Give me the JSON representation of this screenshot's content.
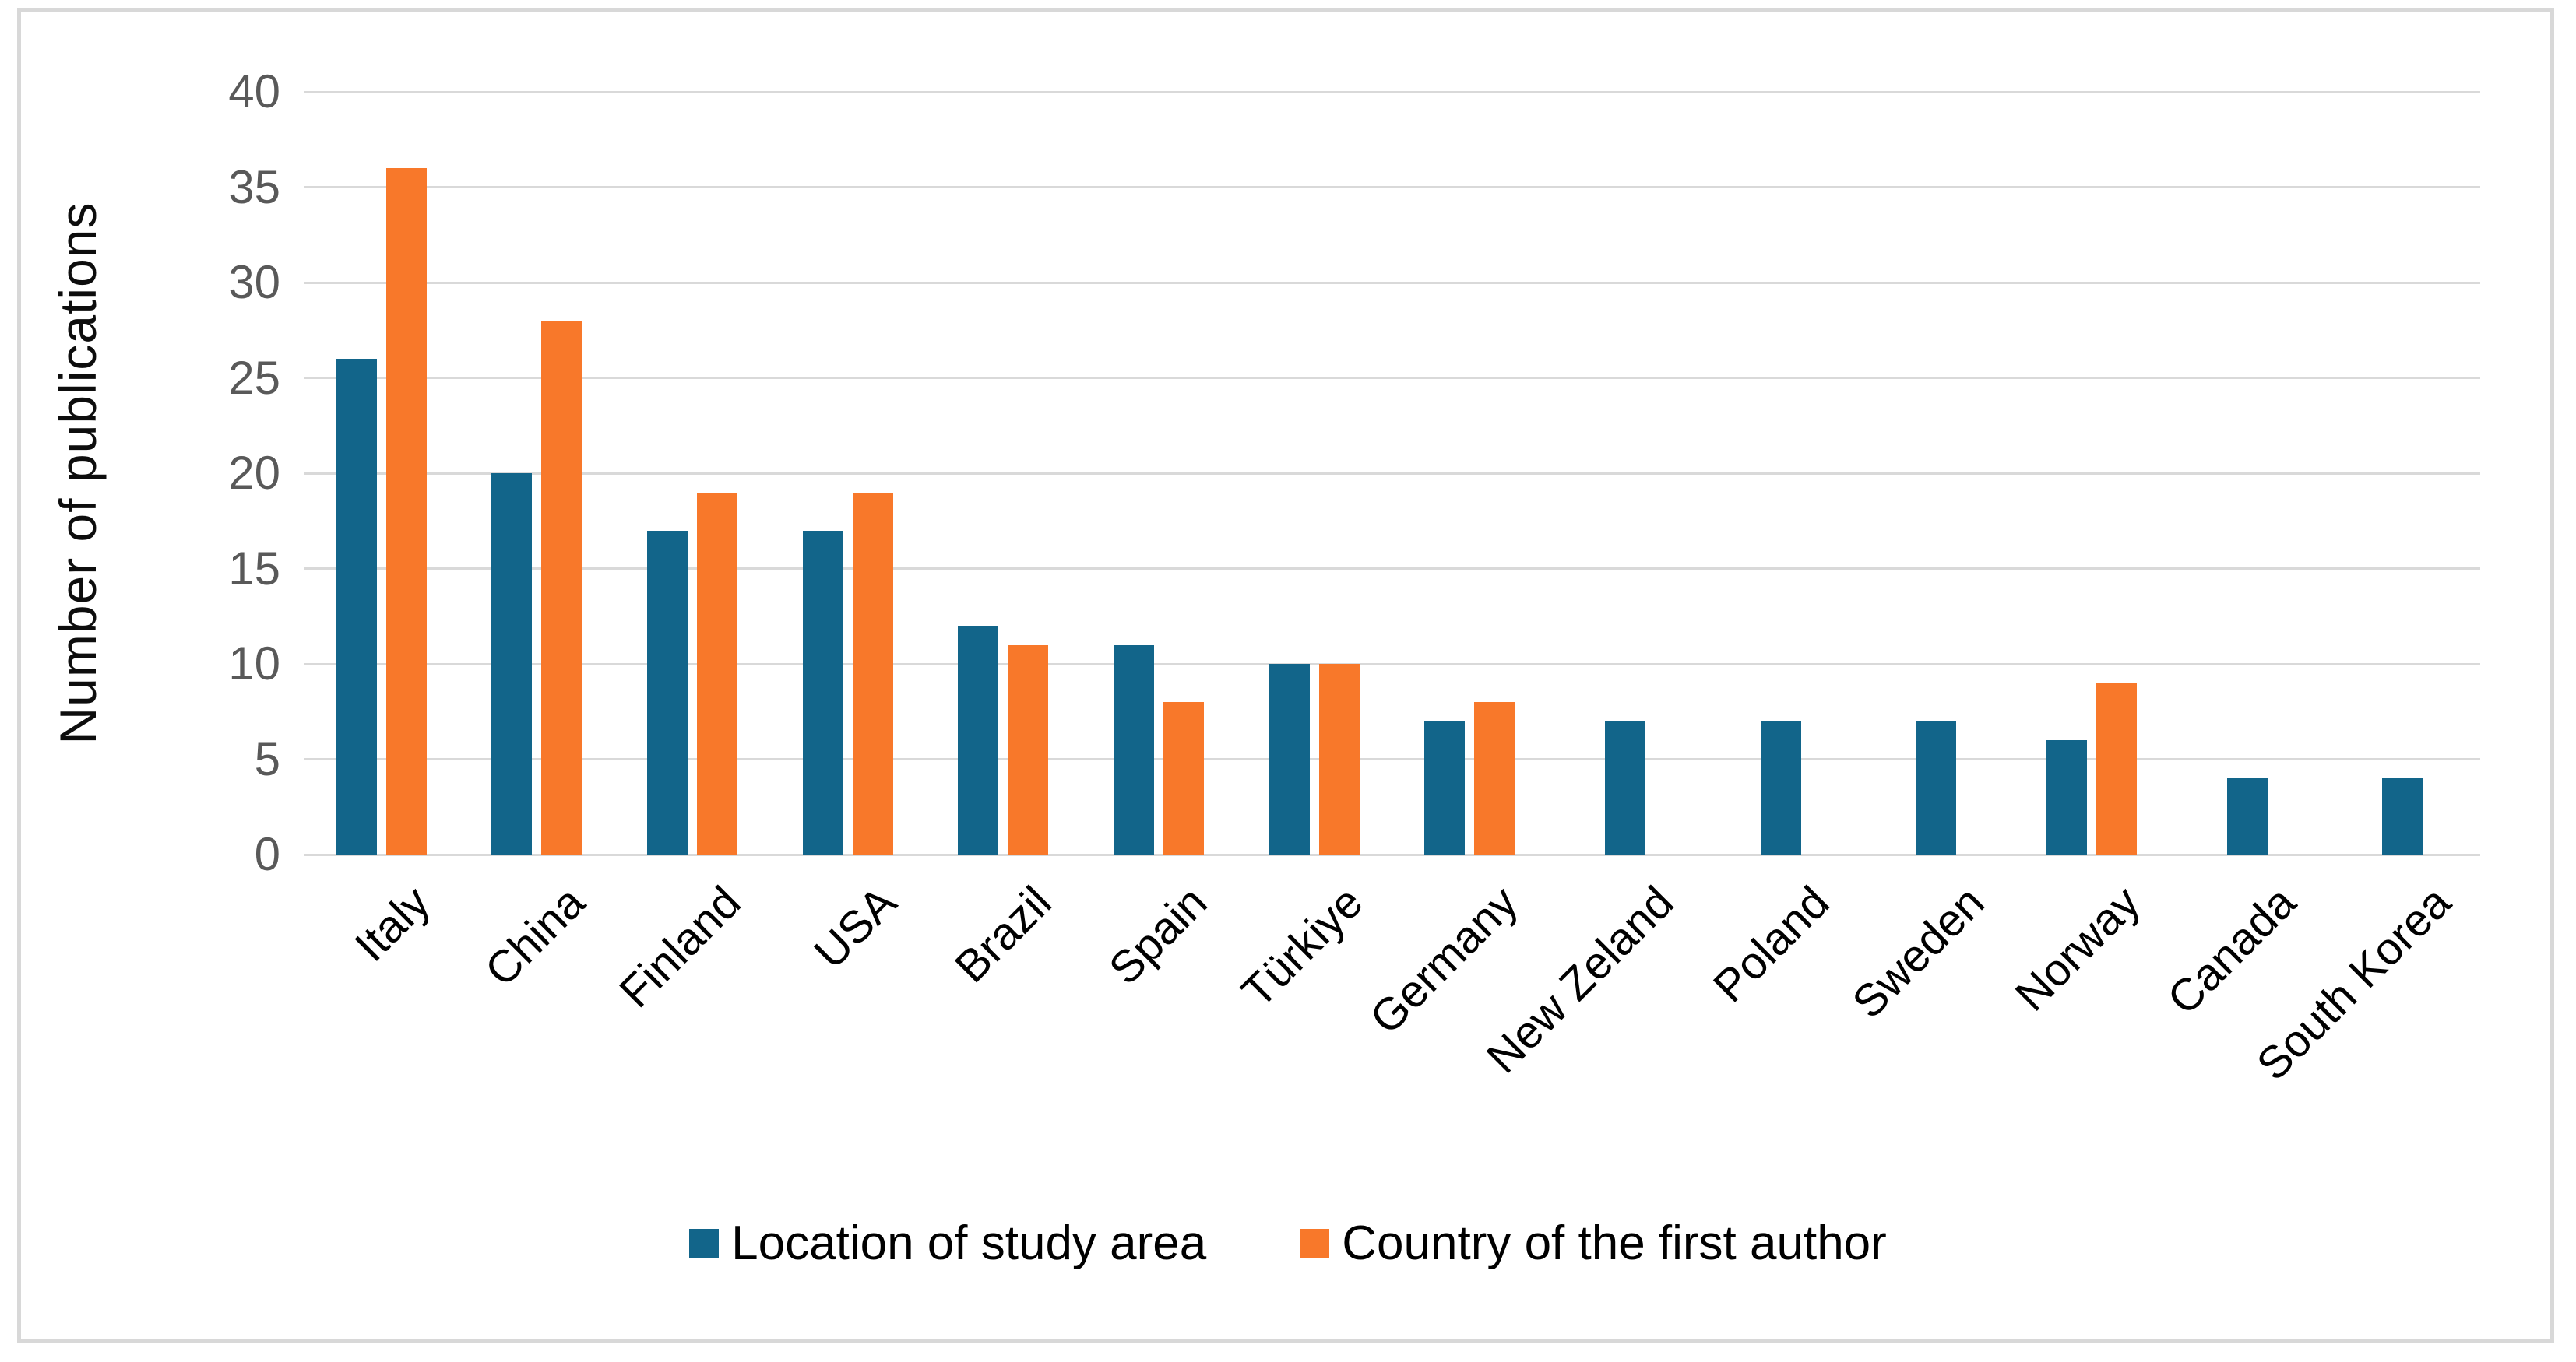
{
  "chart_data": {
    "type": "bar",
    "title": "",
    "categories": [
      "Italy",
      "China",
      "Finland",
      "USA",
      "Brazil",
      "Spain",
      "Türkiye",
      "Germany",
      "New Zeland",
      "Poland",
      "Sweden",
      "Norway",
      "Canada",
      "South Korea"
    ],
    "series": [
      {
        "name": "Location of study area",
        "color": "#12658a",
        "values": [
          26,
          20,
          17,
          17,
          12,
          11,
          10,
          7,
          7,
          7,
          7,
          6,
          4,
          4
        ]
      },
      {
        "name": "Country of the first author",
        "color": "#f8782a",
        "values": [
          36,
          28,
          19,
          19,
          11,
          8,
          10,
          8,
          0,
          0,
          0,
          9,
          0,
          0
        ]
      }
    ],
    "xlabel": "",
    "ylabel": "Number of publications",
    "ylim": [
      0,
      40
    ],
    "yticks": [
      0,
      5,
      10,
      15,
      20,
      25,
      30,
      35,
      40
    ],
    "grid": true,
    "legend_position": "bottom"
  },
  "colors": {
    "background": "#ffffff",
    "frame_border": "#d8d8d8",
    "gridline": "#d9d9d9",
    "tick_label": "#595959",
    "category_label": "#000000",
    "axis_title": "#0d0d0d"
  }
}
